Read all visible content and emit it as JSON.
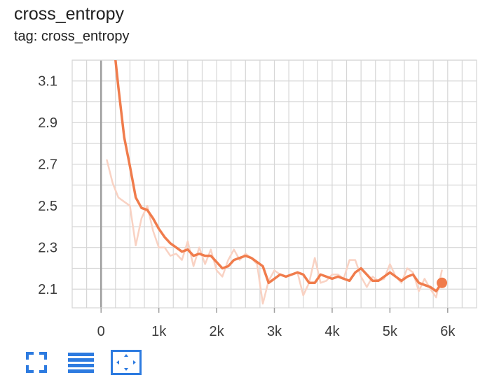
{
  "card": {
    "title": "cross_entropy",
    "tag_label": "tag: cross_entropy"
  },
  "colors": {
    "smoothed": "#f07c4c",
    "raw": "#f9d2c3",
    "grid": "#d6d6d6",
    "zero_axis": "#9e9e9e",
    "tick_text": "#3c3c3c",
    "toolbar_icon": "#2d7be0"
  },
  "toolbar": {
    "icons": [
      "fullscreen-icon",
      "toggle-log-scale-icon",
      "fit-domain-icon"
    ]
  },
  "chart_data": {
    "type": "line",
    "title": "cross_entropy",
    "xlabel": "",
    "ylabel": "",
    "xlim": [
      -500,
      6500
    ],
    "ylim": [
      2.01,
      3.2
    ],
    "xticks": [
      0,
      1000,
      2000,
      3000,
      4000,
      5000,
      6000
    ],
    "xtick_labels": [
      "0",
      "1k",
      "2k",
      "3k",
      "4k",
      "5k",
      "6k"
    ],
    "yticks": [
      2.1,
      2.3,
      2.5,
      2.7,
      2.9,
      3.1
    ],
    "ytick_labels": [
      "2.1",
      "2.3",
      "2.5",
      "2.7",
      "2.9",
      "3.1"
    ],
    "grid": true,
    "series": [
      {
        "name": "",
        "role": "raw",
        "x": [
          100,
          200,
          300,
          400,
          500,
          600,
          700,
          800,
          900,
          1000,
          1100,
          1200,
          1300,
          1400,
          1500,
          1600,
          1700,
          1800,
          1900,
          2000,
          2100,
          2200,
          2300,
          2400,
          2500,
          2600,
          2700,
          2800,
          2900,
          3000,
          3100,
          3200,
          3300,
          3400,
          3500,
          3600,
          3700,
          3800,
          3900,
          4000,
          4100,
          4200,
          4300,
          4400,
          4500,
          4600,
          4700,
          4800,
          4900,
          5000,
          5100,
          5200,
          5300,
          5400,
          5500,
          5600,
          5700,
          5800,
          5900
        ],
        "values": [
          2.72,
          2.61,
          2.54,
          2.52,
          2.5,
          2.31,
          2.44,
          2.5,
          2.38,
          2.3,
          2.3,
          2.26,
          2.27,
          2.24,
          2.33,
          2.21,
          2.3,
          2.22,
          2.29,
          2.19,
          2.16,
          2.24,
          2.29,
          2.24,
          2.27,
          2.25,
          2.22,
          2.03,
          2.14,
          2.19,
          2.17,
          2.16,
          2.17,
          2.18,
          2.07,
          2.13,
          2.25,
          2.13,
          2.14,
          2.17,
          2.17,
          2.15,
          2.24,
          2.24,
          2.16,
          2.11,
          2.16,
          2.14,
          2.15,
          2.22,
          2.16,
          2.13,
          2.2,
          2.18,
          2.09,
          2.15,
          2.1,
          2.06,
          2.19
        ]
      },
      {
        "name": "",
        "role": "smoothed",
        "x": [
          250,
          300,
          400,
          500,
          600,
          700,
          800,
          900,
          1000,
          1100,
          1200,
          1300,
          1400,
          1500,
          1600,
          1700,
          1800,
          1900,
          2000,
          2100,
          2200,
          2300,
          2400,
          2500,
          2600,
          2700,
          2800,
          2900,
          3000,
          3100,
          3200,
          3300,
          3400,
          3500,
          3600,
          3700,
          3800,
          3900,
          4000,
          4100,
          4200,
          4300,
          4400,
          4500,
          4600,
          4700,
          4800,
          4900,
          5000,
          5100,
          5200,
          5300,
          5400,
          5500,
          5600,
          5700,
          5800,
          5900
        ],
        "values": [
          3.2,
          3.07,
          2.83,
          2.69,
          2.54,
          2.49,
          2.48,
          2.44,
          2.39,
          2.35,
          2.32,
          2.3,
          2.28,
          2.29,
          2.26,
          2.27,
          2.26,
          2.26,
          2.23,
          2.2,
          2.21,
          2.24,
          2.25,
          2.26,
          2.25,
          2.23,
          2.21,
          2.13,
          2.15,
          2.17,
          2.16,
          2.17,
          2.18,
          2.17,
          2.13,
          2.13,
          2.17,
          2.16,
          2.15,
          2.16,
          2.15,
          2.14,
          2.18,
          2.2,
          2.17,
          2.14,
          2.14,
          2.16,
          2.18,
          2.16,
          2.14,
          2.16,
          2.17,
          2.13,
          2.12,
          2.11,
          2.09,
          2.13
        ]
      }
    ]
  }
}
